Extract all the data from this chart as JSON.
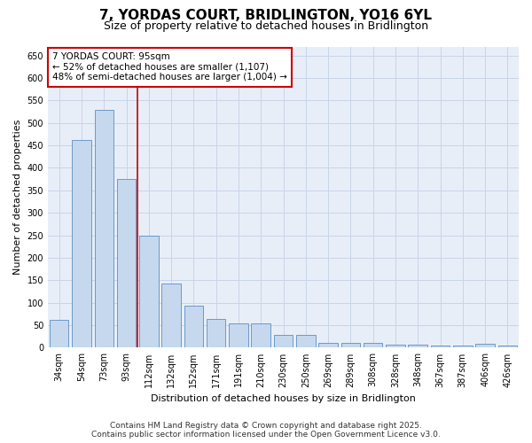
{
  "title": "7, YORDAS COURT, BRIDLINGTON, YO16 6YL",
  "subtitle": "Size of property relative to detached houses in Bridlington",
  "xlabel": "Distribution of detached houses by size in Bridlington",
  "ylabel": "Number of detached properties",
  "categories": [
    "34sqm",
    "54sqm",
    "73sqm",
    "93sqm",
    "112sqm",
    "132sqm",
    "152sqm",
    "171sqm",
    "191sqm",
    "210sqm",
    "230sqm",
    "250sqm",
    "269sqm",
    "289sqm",
    "308sqm",
    "328sqm",
    "348sqm",
    "367sqm",
    "387sqm",
    "406sqm",
    "426sqm"
  ],
  "values": [
    62,
    463,
    530,
    375,
    250,
    143,
    93,
    63,
    55,
    55,
    28,
    28,
    10,
    10,
    10,
    7,
    7,
    5,
    5,
    8,
    4
  ],
  "bar_color": "#c5d8ed",
  "bar_edge_color": "#5b8ec5",
  "property_line_x": 3.5,
  "annotation_text_line1": "7 YORDAS COURT: 95sqm",
  "annotation_text_line2": "← 52% of detached houses are smaller (1,107)",
  "annotation_text_line3": "48% of semi-detached houses are larger (1,004) →",
  "annotation_box_color": "#ffffff",
  "annotation_box_edge_color": "#cc0000",
  "property_line_color": "#cc0000",
  "grid_color": "#c8d4e8",
  "background_color": "#e8eef8",
  "ylim": [
    0,
    670
  ],
  "yticks": [
    0,
    50,
    100,
    150,
    200,
    250,
    300,
    350,
    400,
    450,
    500,
    550,
    600,
    650
  ],
  "footer_line1": "Contains HM Land Registry data © Crown copyright and database right 2025.",
  "footer_line2": "Contains public sector information licensed under the Open Government Licence v3.0.",
  "title_fontsize": 11,
  "subtitle_fontsize": 9,
  "axis_label_fontsize": 8,
  "tick_fontsize": 7,
  "annotation_fontsize": 7.5,
  "footer_fontsize": 6.5
}
